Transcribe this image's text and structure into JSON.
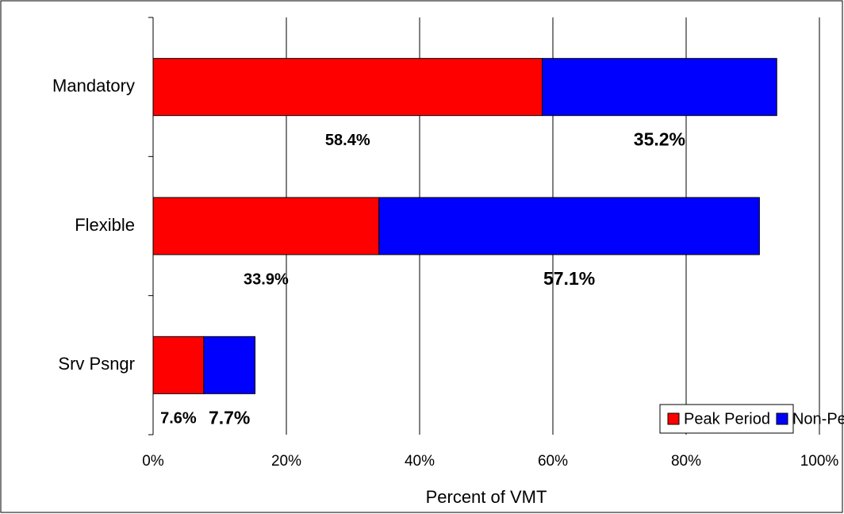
{
  "chart_data": {
    "type": "stacked_barh",
    "categories": [
      "Mandatory",
      "Flexible",
      "Srv Psngr"
    ],
    "series": [
      {
        "name": "Peak Period",
        "color": "#ff0000",
        "values": [
          58.4,
          33.9,
          7.6
        ],
        "value_labels": [
          "58.4%",
          "33.9%",
          "7.6%"
        ]
      },
      {
        "name": "Non-Peak",
        "color": "#0000ff",
        "values": [
          35.2,
          57.1,
          7.7
        ],
        "value_labels": [
          "35.2%",
          "57.1%",
          "7.7%"
        ]
      }
    ],
    "xlabel": "Percent of VMT",
    "xlim": [
      0,
      100
    ],
    "xticks": [
      {
        "value": 0,
        "label": "0%"
      },
      {
        "value": 20,
        "label": "20%"
      },
      {
        "value": 40,
        "label": "40%"
      },
      {
        "value": 60,
        "label": "60%"
      },
      {
        "value": 80,
        "label": "80%"
      },
      {
        "value": 100,
        "label": "100%"
      }
    ],
    "grid": true,
    "legend": "lower right"
  }
}
